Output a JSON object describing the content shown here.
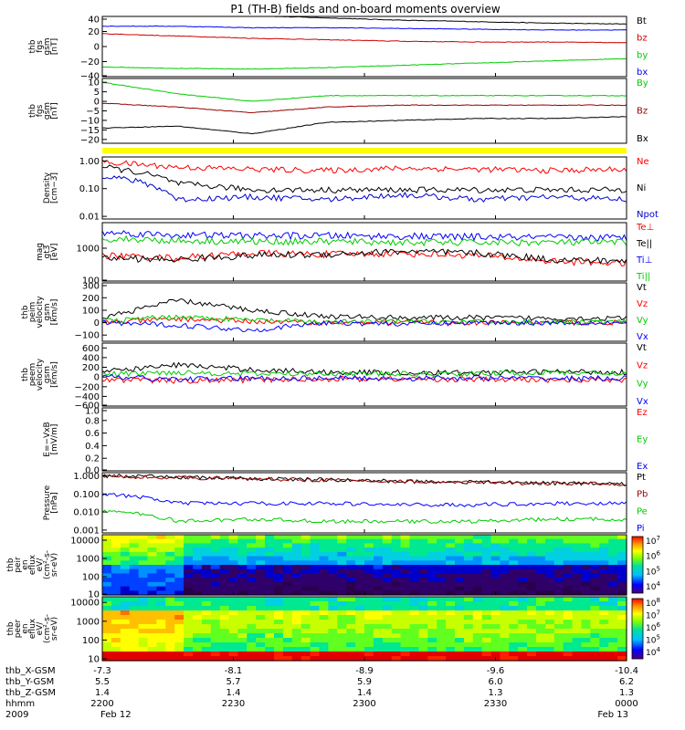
{
  "title": "P1 (TH-B) fields and on-board moments overview",
  "chart_data": {
    "type": "line",
    "title": "P1 (TH-B) fields and on-board moments overview",
    "x_axis": {
      "time_labels": [
        "2200",
        "2230",
        "2300",
        "2330",
        "0000"
      ],
      "rows": [
        {
          "label": "thb_X-GSM",
          "values": [
            "-7.3",
            "-8.1",
            "-8.9",
            "-9.6",
            "-10.4"
          ]
        },
        {
          "label": "thb_Y-GSM",
          "values": [
            "5.5",
            "5.7",
            "5.9",
            "6.0",
            "6.2"
          ]
        },
        {
          "label": "thb_Z-GSM",
          "values": [
            "1.4",
            "1.4",
            "1.4",
            "1.3",
            "1.3"
          ]
        },
        {
          "label": "hhmm",
          "values": [
            "2200",
            "2230",
            "2300",
            "2330",
            "0000"
          ]
        },
        {
          "label": "2009",
          "values": [
            "Feb 12",
            "",
            "",
            "",
            "Feb 13"
          ]
        }
      ]
    },
    "panels": [
      {
        "ylabel": [
          "thb",
          "fgs",
          "gsm",
          "[nT]"
        ],
        "scale": "linear",
        "ylim": [
          -40,
          40
        ],
        "yticks": [
          "40",
          "20",
          "0",
          "−20",
          "−40"
        ],
        "series": [
          {
            "name": "Bt",
            "color": "#000000",
            "values": [
              44,
              43,
              41,
              38,
              35,
              33,
              31,
              30
            ]
          },
          {
            "name": "bz",
            "color": "#cc0000",
            "values": [
              17,
              14,
              11,
              9,
              7,
              6,
              6,
              5
            ]
          },
          {
            "name": "by",
            "color": "#00cc00",
            "values": [
              -27,
              -29,
              -30,
              -28,
              -25,
              -22,
              -19,
              -16
            ]
          },
          {
            "name": "bx",
            "color": "#0000ff",
            "values": [
              27,
              27,
              25,
              25,
              24,
              23,
              22,
              22
            ]
          }
        ]
      },
      {
        "ylabel": [
          "thb",
          "fgs",
          "gsm",
          "[nT]"
        ],
        "scale": "linear",
        "ylim": [
          -22,
          12
        ],
        "yticks": [
          "10",
          "5",
          "0",
          "−5",
          "−10",
          "−15",
          "−20"
        ],
        "series": [
          {
            "name": "By",
            "color": "#00cc00",
            "values": [
              10,
              4,
              0,
              3,
              3,
              3,
              3,
              3
            ]
          },
          {
            "name": "Bz",
            "color": "#990000",
            "values": [
              -1,
              -3,
              -6,
              -3,
              -2,
              -2,
              -2,
              -2
            ]
          },
          {
            "name": "Bx",
            "color": "#000000",
            "values": [
              -14,
              -13,
              -17,
              -11,
              -10,
              -9,
              -9,
              -8
            ]
          }
        ]
      },
      {
        "ylabel": [
          "Density",
          "[cm−3]"
        ],
        "scale": "log",
        "ylim": [
          0.008,
          1.4
        ],
        "yticks": [
          "1.00",
          "0.10",
          "0.01"
        ],
        "series": [
          {
            "name": "Ne",
            "color": "#ff0000",
            "values": [
              0.9,
              0.6,
              0.5,
              0.45,
              0.55,
              0.5,
              0.45,
              0.5
            ]
          },
          {
            "name": "Ni",
            "color": "#000000",
            "values": [
              0.6,
              0.15,
              0.09,
              0.09,
              0.09,
              0.09,
              0.09,
              0.09
            ]
          },
          {
            "name": "Npot",
            "color": "#0000cc",
            "values": [
              0.3,
              0.04,
              0.05,
              0.04,
              0.06,
              0.04,
              0.05,
              0.04
            ]
          }
        ]
      },
      {
        "ylabel": [
          "mag",
          "gt3",
          "[eV]"
        ],
        "scale": "log",
        "ylim": [
          100,
          6000
        ],
        "yticks": [
          "1000",
          "100"
        ],
        "series": [
          {
            "name": "Te⊥",
            "color": "#ff0000",
            "values": [
              600,
              500,
              700,
              650,
              700,
              600,
              400,
              350
            ]
          },
          {
            "name": "Te||",
            "color": "#000000",
            "values": [
              500,
              450,
              600,
              650,
              800,
              700,
              450,
              400
            ]
          },
          {
            "name": "Ti⊥",
            "color": "#0000ff",
            "values": [
              3000,
              2500,
              2400,
              2400,
              2300,
              2200,
              2100,
              2100
            ]
          },
          {
            "name": "Ti||",
            "color": "#00cc00",
            "values": [
              2000,
              1700,
              1600,
              1600,
              1500,
              1500,
              1500,
              1500
            ]
          }
        ]
      },
      {
        "ylabel": [
          "thb",
          "peim",
          "velocity",
          "gsm",
          "[km/s]"
        ],
        "scale": "linear",
        "ylim": [
          -150,
          320
        ],
        "yticks": [
          "300",
          "200",
          "100",
          "0",
          "−100"
        ],
        "series": [
          {
            "name": "Vt",
            "color": "#000000",
            "values": [
              40,
              180,
              100,
              50,
              40,
              40,
              35,
              35
            ]
          },
          {
            "name": "Vz",
            "color": "#ff0000",
            "values": [
              0,
              30,
              10,
              0,
              5,
              0,
              0,
              0
            ]
          },
          {
            "name": "Vy",
            "color": "#00cc00",
            "values": [
              10,
              50,
              20,
              5,
              10,
              5,
              5,
              5
            ]
          },
          {
            "name": "Vx",
            "color": "#0000ff",
            "values": [
              0,
              -20,
              -60,
              0,
              -10,
              0,
              0,
              0
            ]
          }
        ]
      },
      {
        "ylabel": [
          "thb",
          "peem",
          "velocity",
          "gsm",
          "[km/s]"
        ],
        "scale": "linear",
        "ylim": [
          -600,
          700
        ],
        "yticks": [
          "600",
          "400",
          "200",
          "0",
          "−200",
          "−400",
          "−600"
        ],
        "series": [
          {
            "name": "Vt",
            "color": "#000000",
            "values": [
              100,
              250,
              150,
              100,
              90,
              80,
              110,
              100
            ]
          },
          {
            "name": "Vz",
            "color": "#ff0000",
            "values": [
              -50,
              -80,
              -60,
              -40,
              -40,
              -50,
              -60,
              -60
            ]
          },
          {
            "name": "Vy",
            "color": "#00cc00",
            "values": [
              50,
              100,
              60,
              80,
              60,
              70,
              90,
              80
            ]
          },
          {
            "name": "Vx",
            "color": "#0000ff",
            "values": [
              0,
              -50,
              -30,
              -20,
              -30,
              -20,
              -30,
              -30
            ]
          }
        ]
      },
      {
        "ylabel": [
          "E=−VxB",
          "[mV/m]"
        ],
        "scale": "linear",
        "ylim": [
          0,
          1
        ],
        "yticks": [
          "1.0",
          "0.8",
          "0.6",
          "0.4",
          "0.2",
          "0.0"
        ],
        "series": [
          {
            "name": "Ez",
            "color": "#ff0000",
            "values": []
          },
          {
            "name": "Ey",
            "color": "#00cc00",
            "values": []
          },
          {
            "name": "Ex",
            "color": "#0000ff",
            "values": []
          }
        ]
      },
      {
        "ylabel": [
          "Pressure",
          "[nPa]"
        ],
        "scale": "log",
        "ylim": [
          0.0007,
          1.5
        ],
        "yticks": [
          "1.000",
          "0.100",
          "0.010",
          "0.001"
        ],
        "series": [
          {
            "name": "Pt",
            "color": "#000000",
            "values": [
              1.0,
              0.85,
              0.7,
              0.6,
              0.5,
              0.45,
              0.4,
              0.35
            ]
          },
          {
            "name": "Pb",
            "color": "#990000",
            "values": [
              0.95,
              0.8,
              0.68,
              0.58,
              0.49,
              0.43,
              0.38,
              0.34
            ]
          },
          {
            "name": "Pe",
            "color": "#00cc00",
            "values": [
              0.012,
              0.003,
              0.004,
              0.003,
              0.003,
              0.003,
              0.004,
              0.004
            ]
          },
          {
            "name": "Pi",
            "color": "#0000ff",
            "values": [
              0.1,
              0.03,
              0.03,
              0.03,
              0.025,
              0.025,
              0.03,
              0.03
            ]
          }
        ]
      },
      {
        "kind": "spectrogram",
        "ylabel": [
          "thb",
          "peir",
          "en",
          "eflux",
          "eV/",
          "(cm²-s-",
          "sr-eV)"
        ],
        "scale": "log",
        "ylim": [
          10,
          20000
        ],
        "yticks": [
          "10000",
          "1000",
          "100",
          "10"
        ],
        "colorbar": {
          "exponents": [
            "7",
            "6",
            "5",
            "4"
          ]
        }
      },
      {
        "kind": "spectrogram",
        "ylabel": [
          "thb",
          "peer",
          "en",
          "eflux",
          "eV/",
          "(cm²-s-",
          "sr-eV)"
        ],
        "scale": "log",
        "ylim": [
          8,
          20000
        ],
        "yticks": [
          "10000",
          "1000",
          "100",
          "10"
        ],
        "colorbar": {
          "exponents": [
            "8",
            "7",
            "6",
            "5",
            "4"
          ]
        }
      }
    ]
  }
}
